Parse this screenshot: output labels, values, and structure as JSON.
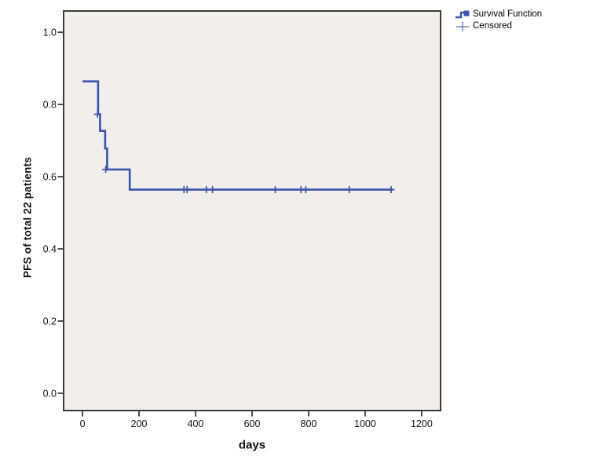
{
  "figure": {
    "background": "#ffffff",
    "legend": {
      "items": [
        {
          "label": "Survival Function",
          "icon": "step-line-icon"
        },
        {
          "label": "Censored",
          "icon": "plus-icon"
        }
      ]
    }
  },
  "chart_data": {
    "type": "line",
    "subtype": "kaplan-meier-step",
    "title": "",
    "xlabel": "days",
    "ylabel": "PFS of total 22 patients",
    "x_ticks": [
      0,
      200,
      400,
      600,
      800,
      1000,
      1200
    ],
    "y_ticks": [
      "0.0",
      "0.2",
      "0.4",
      "0.6",
      "0.8",
      "1.0"
    ],
    "xlim": [
      -67,
      1267
    ],
    "ylim": [
      -0.048,
      1.059
    ],
    "grid": false,
    "legend_position": "top-right-outside",
    "plot_background": "#f0efed",
    "border_color": "#3c3c3c",
    "line_color": "#3b54a8",
    "censor_color": "#3b54a8",
    "legend_line_color": "#3b54a8",
    "legend_plus_color": "#8292c9",
    "series": [
      {
        "name": "Survival Function",
        "step_points": [
          [
            0,
            0.864
          ],
          [
            55,
            0.864
          ],
          [
            55,
            0.773
          ],
          [
            62,
            0.773
          ],
          [
            62,
            0.727
          ],
          [
            80,
            0.727
          ],
          [
            80,
            0.678
          ],
          [
            87,
            0.678
          ],
          [
            87,
            0.62
          ],
          [
            167,
            0.62
          ],
          [
            167,
            0.564
          ],
          [
            1097,
            0.564
          ]
        ]
      }
    ],
    "censored": {
      "name": "Censored",
      "marker": "+",
      "points": [
        [
          53,
          0.773
        ],
        [
          82,
          0.62
        ],
        [
          359,
          0.564
        ],
        [
          370,
          0.564
        ],
        [
          438,
          0.564
        ],
        [
          460,
          0.564
        ],
        [
          682,
          0.564
        ],
        [
          773,
          0.564
        ],
        [
          790,
          0.564
        ],
        [
          944,
          0.564
        ],
        [
          1092,
          0.564
        ]
      ]
    }
  }
}
